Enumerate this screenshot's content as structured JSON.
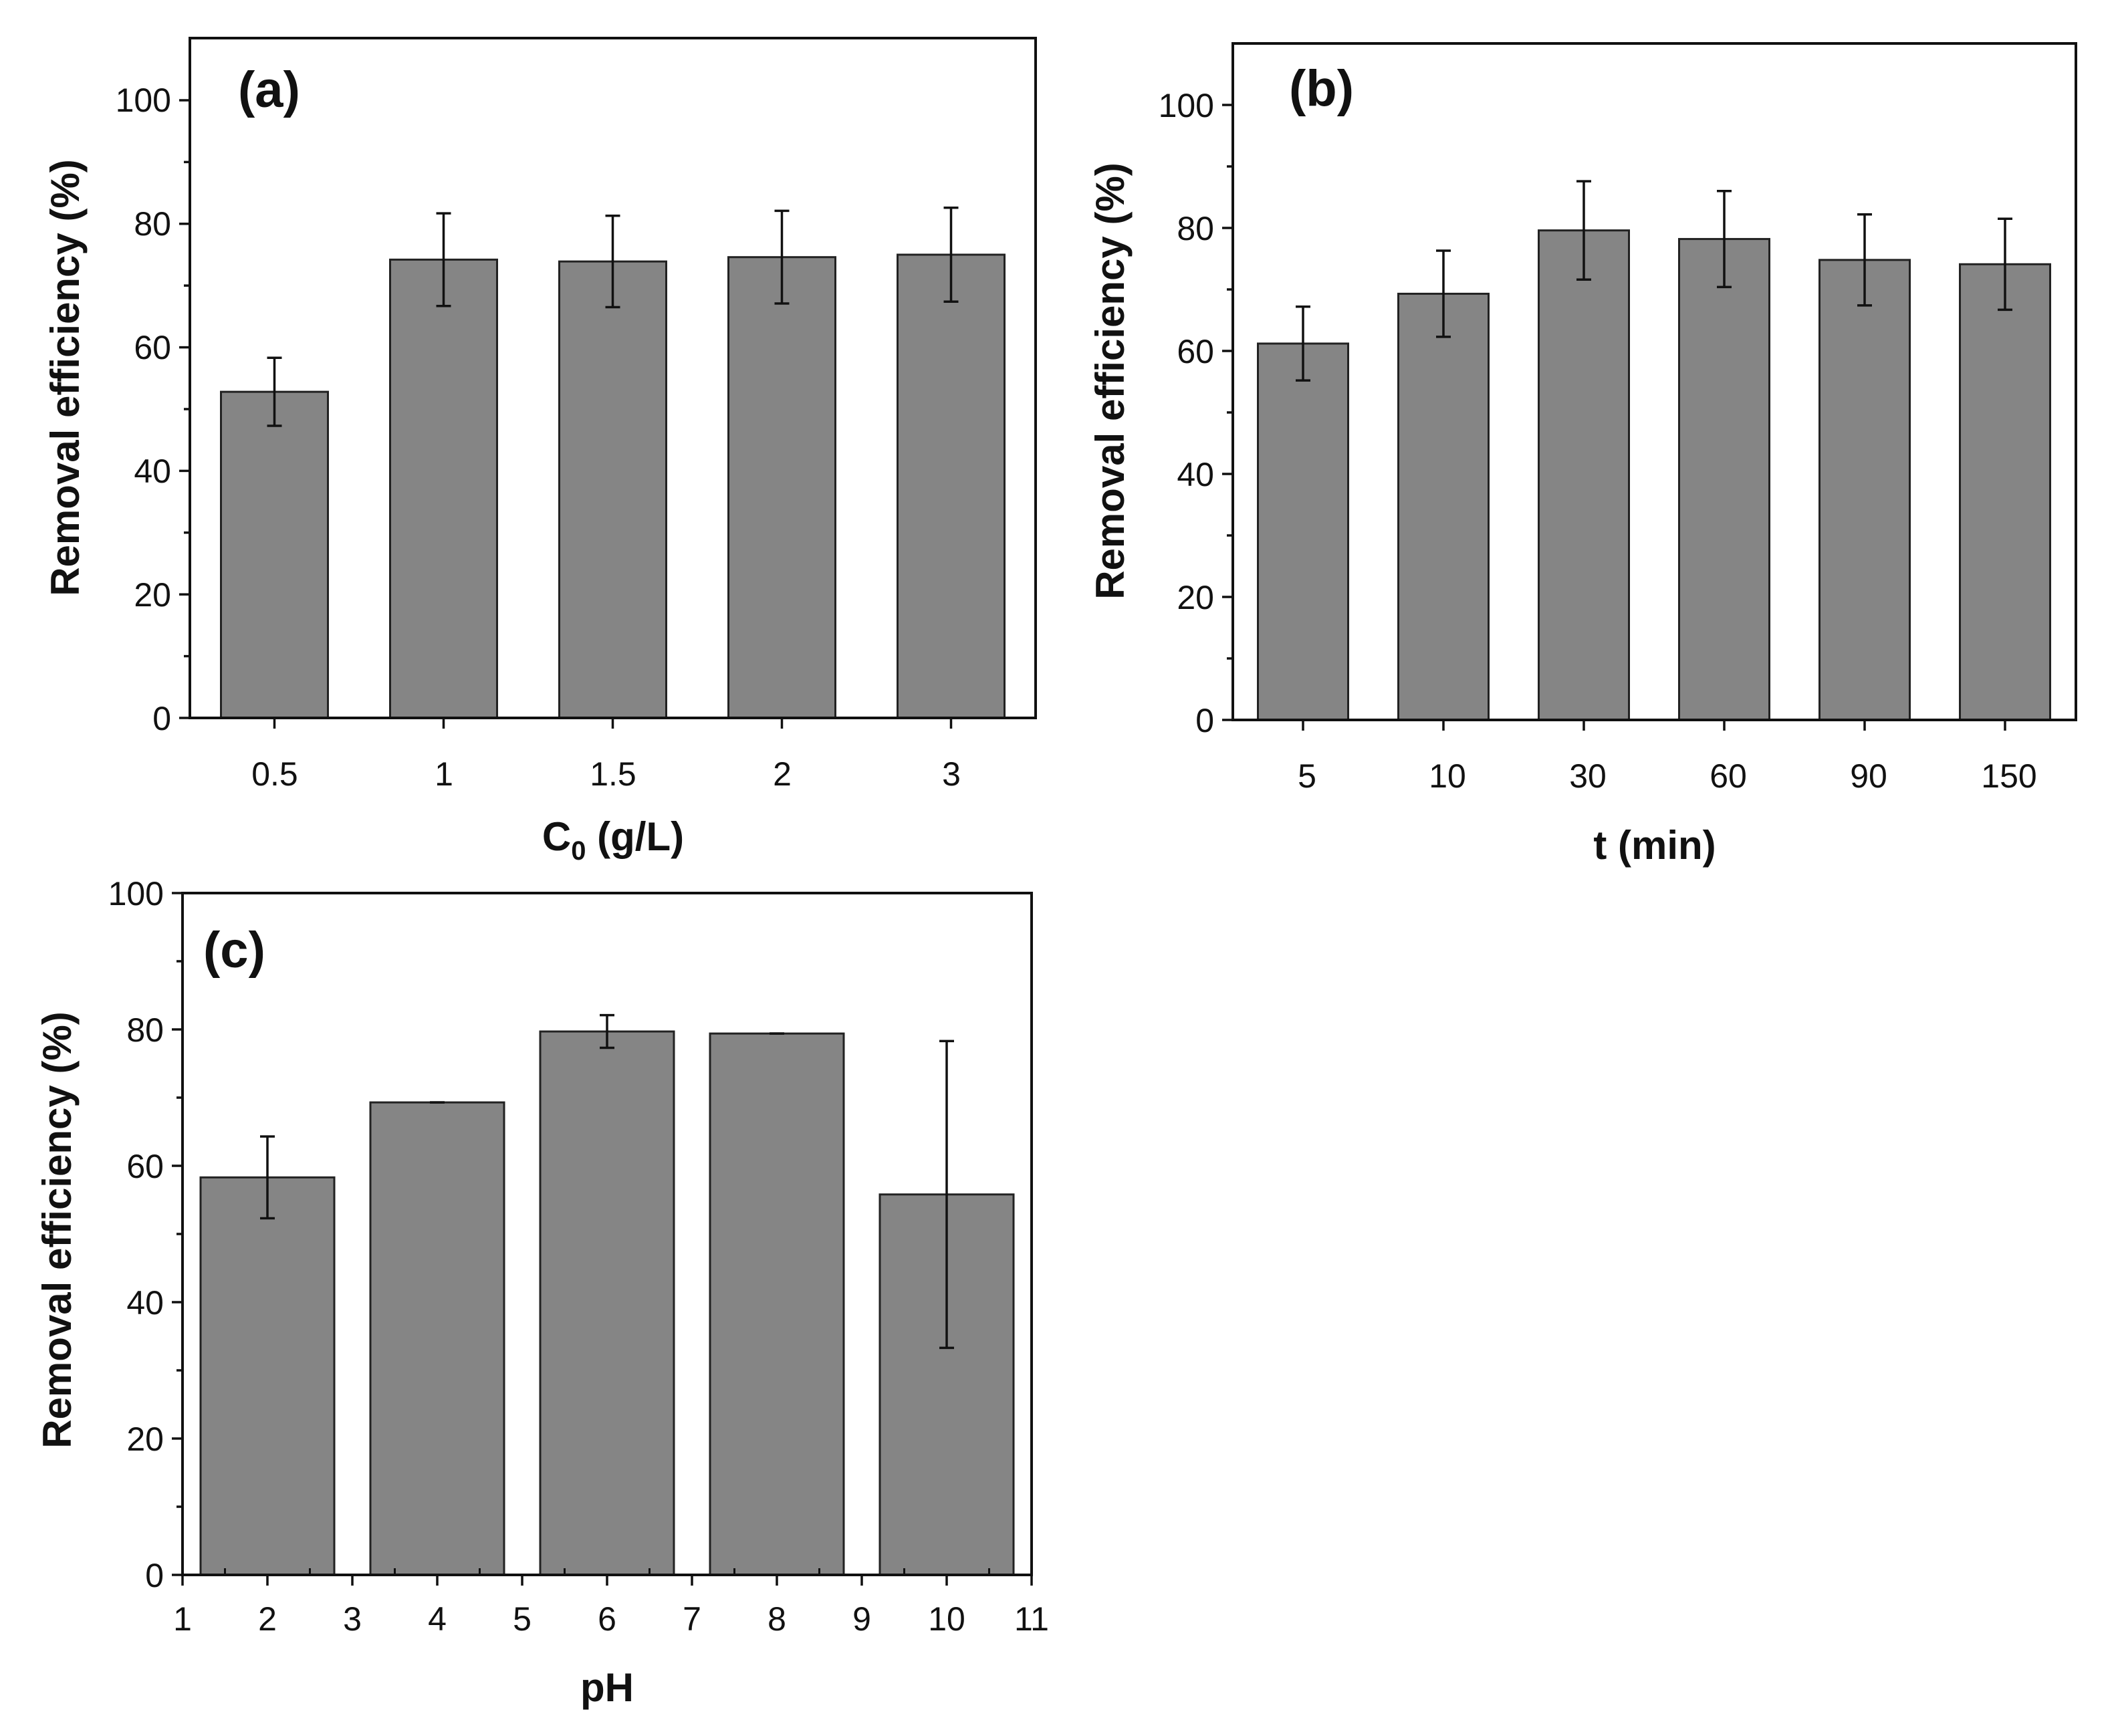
{
  "chart_data": [
    {
      "type": "bar",
      "panel_label": "(a)",
      "categories": [
        "0.5",
        "1",
        "1.5",
        "2",
        "3"
      ],
      "values": [
        52.8,
        74.2,
        73.9,
        74.6,
        75.0
      ],
      "errors": [
        5.5,
        7.5,
        7.4,
        7.5,
        7.6
      ],
      "xlabel_main": "C",
      "xlabel_sub": "0",
      "xlabel_rest": " (g/L)",
      "ylabel": "Removal efficiency (%)",
      "ylim": [
        0,
        110
      ],
      "yticks": [
        "0",
        "20",
        "40",
        "60",
        "80",
        "100"
      ],
      "bar_color": "#858585",
      "grid": false
    },
    {
      "type": "bar",
      "panel_label": "(b)",
      "categories": [
        "5",
        "10",
        "30",
        "60",
        "90",
        "150"
      ],
      "values": [
        61.2,
        69.3,
        79.6,
        78.2,
        74.8,
        74.1
      ],
      "errors": [
        6.0,
        7.0,
        8.0,
        7.8,
        7.4,
        7.4
      ],
      "xlabel": "t (min)",
      "ylabel": "Removal efficiency (%)",
      "ylim": [
        0,
        110
      ],
      "yticks": [
        "0",
        "20",
        "40",
        "60",
        "80",
        "100"
      ],
      "bar_color": "#858585",
      "grid": false
    },
    {
      "type": "bar",
      "panel_label": "(c)",
      "x": [
        2,
        4,
        6,
        8,
        10
      ],
      "values": [
        58.3,
        69.3,
        79.7,
        79.4,
        55.8
      ],
      "errors": [
        6.0,
        0.0,
        2.4,
        0.0,
        22.5
      ],
      "xlabel": "pH",
      "ylabel": "Removal efficiency (%)",
      "xlim": [
        1,
        11
      ],
      "xticks": [
        "1",
        "2",
        "3",
        "4",
        "5",
        "6",
        "7",
        "8",
        "9",
        "10",
        "11"
      ],
      "ylim": [
        0,
        100
      ],
      "yticks": [
        "0",
        "20",
        "40",
        "60",
        "80",
        "100"
      ],
      "bar_color": "#858585",
      "grid": false
    }
  ]
}
